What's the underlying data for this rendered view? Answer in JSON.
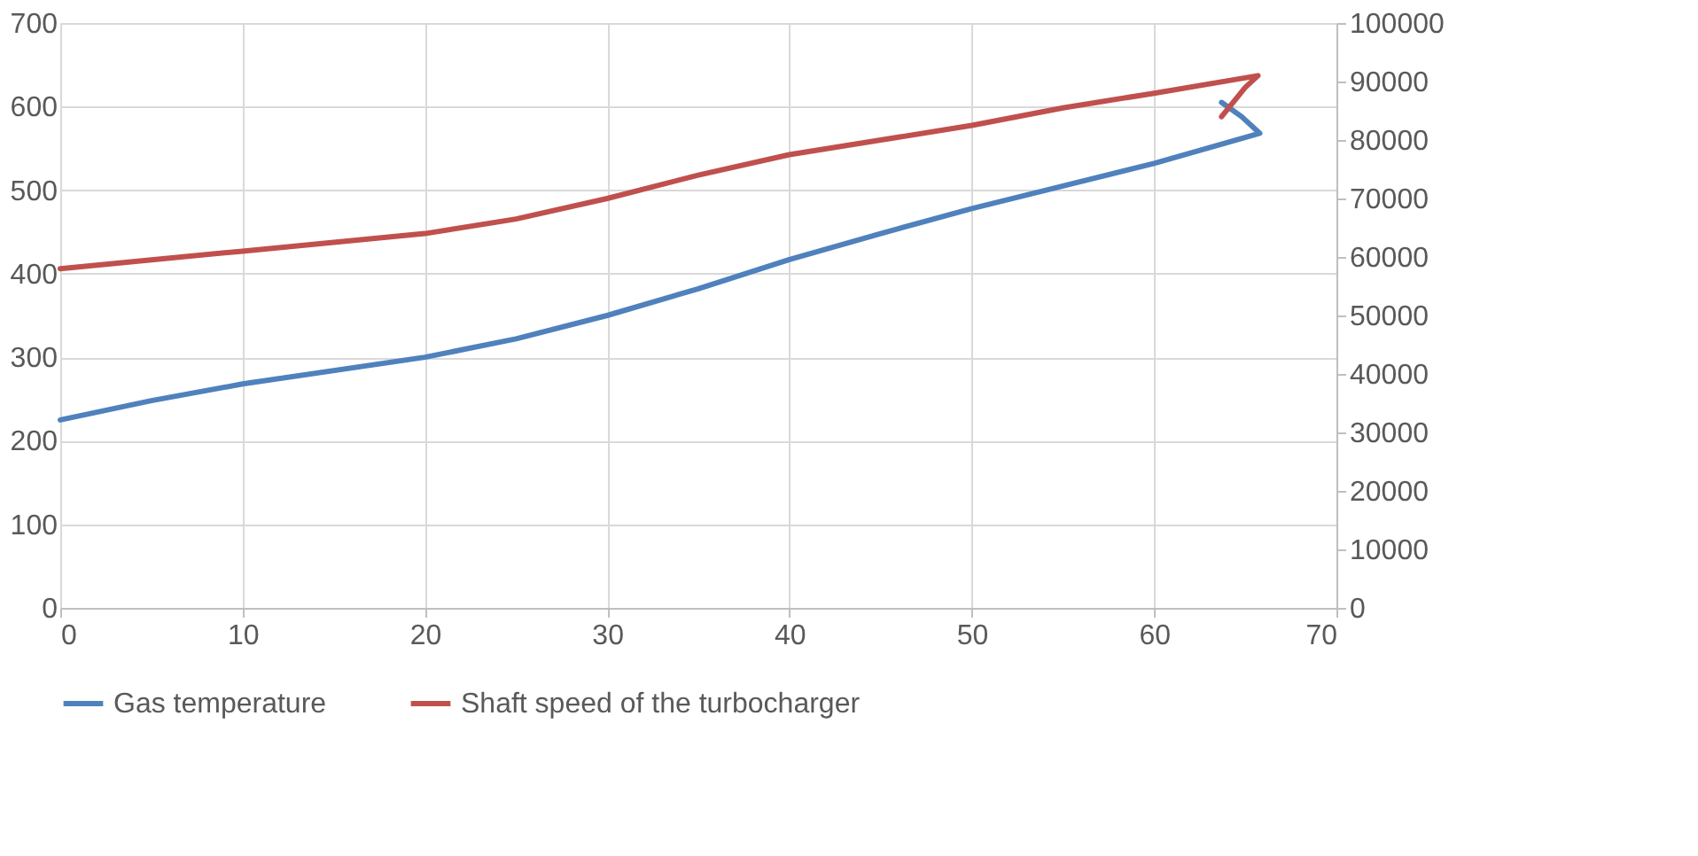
{
  "chart_data": {
    "type": "line",
    "xlim": [
      0,
      70
    ],
    "xticks": [
      0,
      10,
      20,
      30,
      40,
      50,
      60,
      70
    ],
    "ylim": [
      0,
      700
    ],
    "yticks": [
      0,
      100,
      200,
      300,
      400,
      500,
      600,
      700
    ],
    "y2lim": [
      0,
      100000
    ],
    "y2ticks": [
      0,
      10000,
      20000,
      30000,
      40000,
      50000,
      60000,
      70000,
      80000,
      90000,
      100000
    ],
    "grid": true,
    "legend": "bottom",
    "marker": "none",
    "line_style": "solid",
    "series": [
      {
        "name": "Gas temperature",
        "color": "#4f81bd",
        "x": [
          0,
          5,
          10,
          20,
          25,
          30,
          35,
          40,
          45,
          50,
          55,
          60,
          65.8,
          64.8,
          63.7
        ],
        "values": [
          225,
          248,
          268,
          300,
          322,
          350,
          382,
          417,
          448,
          478,
          505,
          532,
          568,
          588,
          605
        ]
      },
      {
        "name": "Shaft speed of the turbocharger",
        "color": "#c0504d",
        "axis": "y2",
        "x": [
          0,
          5,
          10,
          20,
          25,
          30,
          35,
          40,
          45,
          50,
          55,
          60,
          65.7,
          65.0,
          63.7
        ],
        "values": [
          58000,
          59500,
          61000,
          64000,
          66500,
          70000,
          74000,
          77500,
          80000,
          82500,
          85500,
          88000,
          91000,
          89000,
          84000
        ]
      }
    ]
  }
}
